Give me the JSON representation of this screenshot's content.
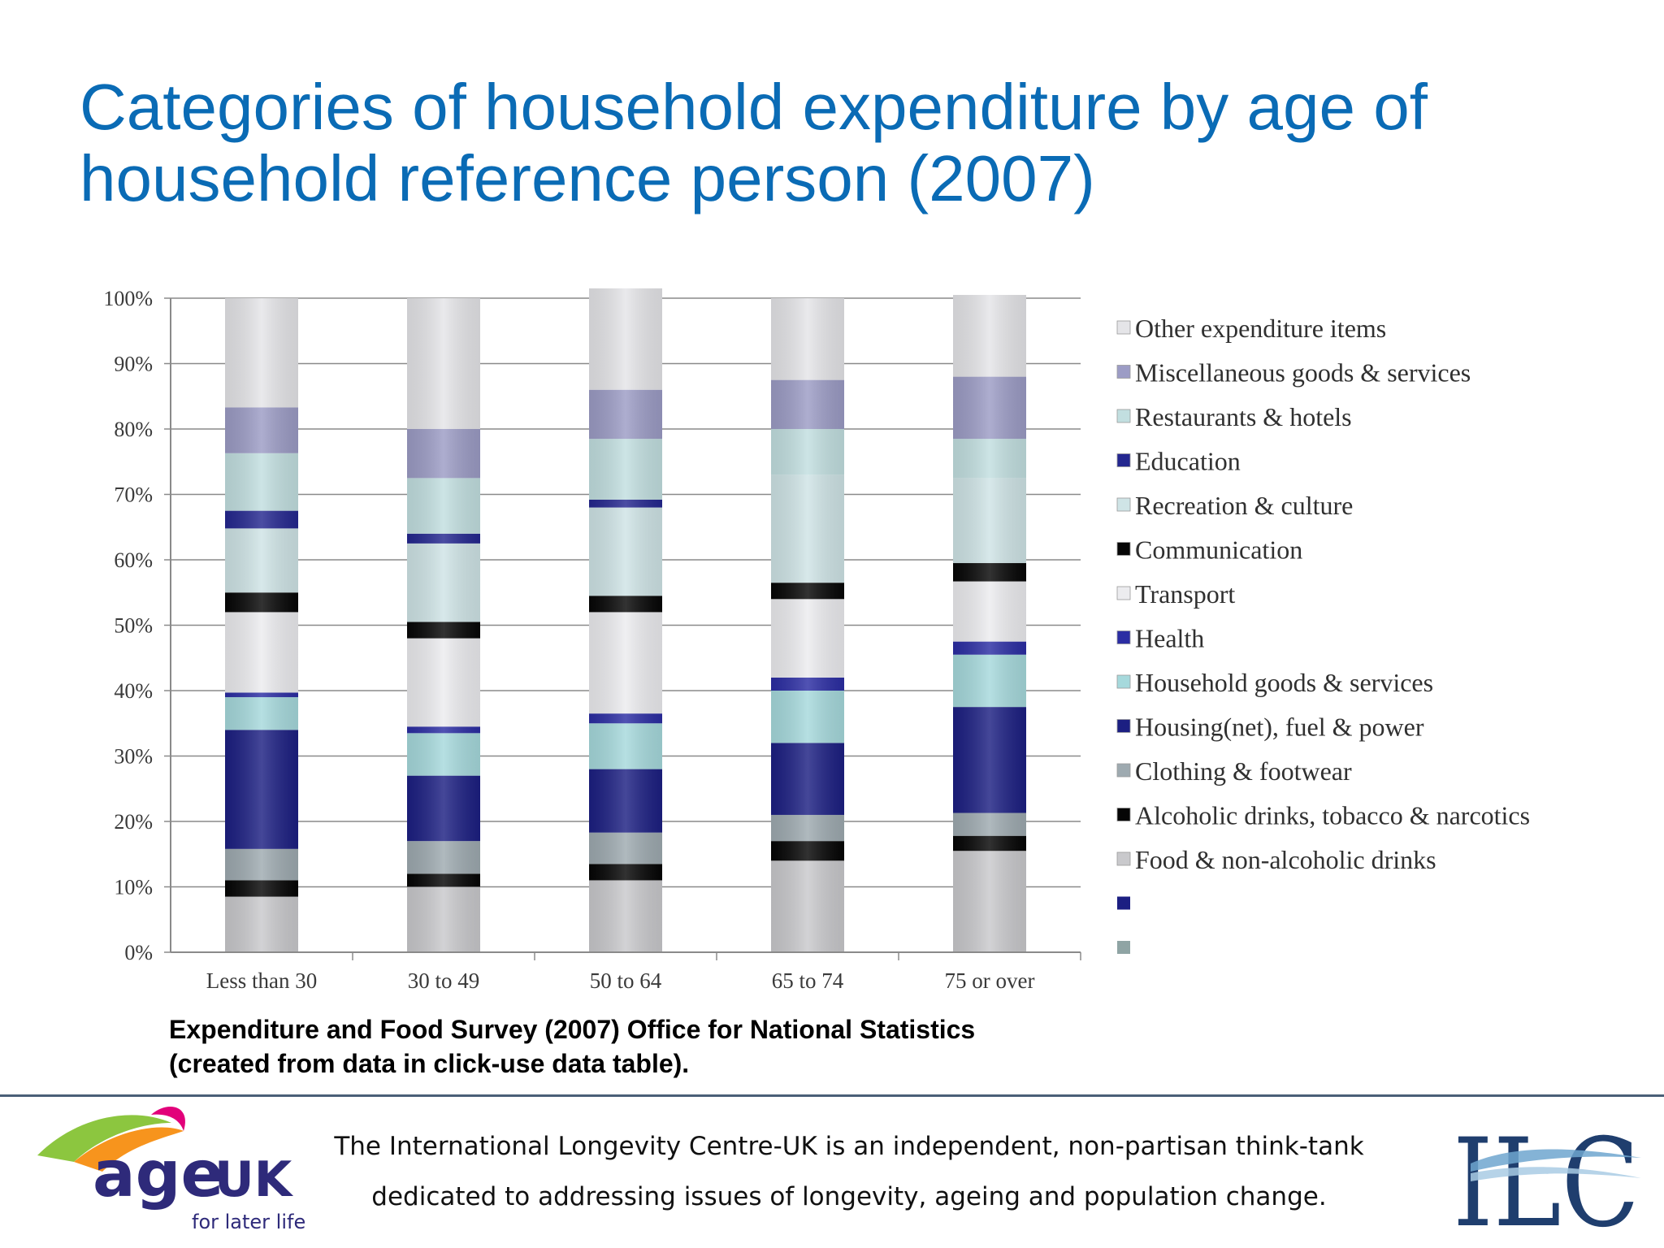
{
  "slide": {
    "title_line1": "Categories of household expenditure by age of",
    "title_line2": "household reference person (2007)",
    "caption_line1": "Expenditure and Food Survey (2007) Office for National Statistics",
    "caption_line2": "(created from data in click-use data table).",
    "footer_line1": "The International Longevity Centre-UK is an independent, non-partisan think-tank",
    "footer_line2": "dedicated to addressing issues of longevity, ageing and population change."
  },
  "logos": {
    "ageuk_wordmark": "age",
    "ageuk_uk": "UK",
    "ageuk_tagline": "for later life",
    "ilc_wordmark": "ILC"
  },
  "chart_data": {
    "type": "bar",
    "stacked": true,
    "percent_stacked": true,
    "categories": [
      "Less than 30",
      "30 to 49",
      "50 to 64",
      "65 to 74",
      "75 or over"
    ],
    "ylim": [
      0,
      100
    ],
    "yticks": [
      "0%",
      "10%",
      "20%",
      "30%",
      "40%",
      "50%",
      "60%",
      "70%",
      "80%",
      "90%",
      "100%"
    ],
    "grid": true,
    "legend_position": "right",
    "series": [
      {
        "name": "Food & non-alcoholic drinks",
        "color": "#c9c9cc",
        "values": [
          8.5,
          10,
          11,
          14,
          15.5
        ]
      },
      {
        "name": "Alcoholic drinks, tobacco & narcotics",
        "color": "#050505",
        "values": [
          2.5,
          2,
          2.5,
          3,
          2.3
        ]
      },
      {
        "name": "Clothing & footwear",
        "color": "#9eaab0",
        "values": [
          4.8,
          5,
          4.8,
          4,
          3.5
        ]
      },
      {
        "name": "Housing(net), fuel & power",
        "color": "#1c1f82",
        "values": [
          18.2,
          10,
          9.7,
          11,
          16.2
        ]
      },
      {
        "name": "Household goods & services",
        "color": "#a6d9dc",
        "values": [
          5,
          6.5,
          7,
          8,
          8
        ]
      },
      {
        "name": "Health",
        "color": "#2b2da3",
        "values": [
          0.7,
          1,
          1.5,
          2,
          2
        ]
      },
      {
        "name": "Transport",
        "color": "#ececef",
        "values": [
          12.3,
          13.5,
          15.5,
          12,
          9.2
        ]
      },
      {
        "name": "Communication",
        "color": "#060606",
        "values": [
          3,
          2.5,
          2.5,
          2.5,
          2.8
        ]
      },
      {
        "name": "Recreation & culture",
        "color": "#cfe4e6",
        "values": [
          9.8,
          12,
          13.5,
          16.5,
          13
        ]
      },
      {
        "name": "Education",
        "color": "#24278f",
        "values": [
          2.7,
          1.5,
          1.2,
          0,
          0
        ]
      },
      {
        "name": "Restaurants & hotels",
        "color": "#c2dfe0",
        "values": [
          8.8,
          8.5,
          9.3,
          7,
          6
        ]
      },
      {
        "name": "Miscellaneous goods & services",
        "color": "#9c9cc5",
        "values": [
          7,
          7.5,
          7.5,
          7.5,
          9.5
        ]
      },
      {
        "name": "Other expenditure items",
        "color": "#e5e5e8",
        "values": [
          16.7,
          20,
          15.5,
          12.5,
          12.5
        ]
      }
    ],
    "legend_extra_swatches": [
      "#1c1f82",
      "#8fa4a4"
    ]
  }
}
